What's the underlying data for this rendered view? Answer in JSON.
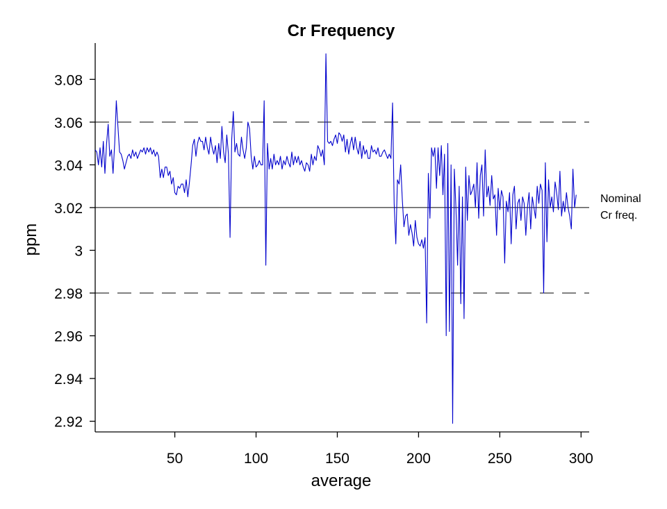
{
  "chart_data": {
    "type": "line",
    "title": "Cr Frequency",
    "xlabel": "average",
    "ylabel": "ppm",
    "xlim": [
      1,
      305
    ],
    "ylim": [
      2.915,
      3.097
    ],
    "xticks": [
      50,
      100,
      150,
      200,
      250,
      300
    ],
    "xtick_labels": [
      "50",
      "100",
      "150",
      "200",
      "250",
      "300"
    ],
    "yticks": [
      2.92,
      2.94,
      2.96,
      2.98,
      3.0,
      3.02,
      3.04,
      3.06,
      3.08
    ],
    "ytick_labels": [
      "2.92",
      "2.94",
      "2.96",
      "2.98",
      "3",
      "3.02",
      "3.04",
      "3.06",
      "3.08"
    ],
    "grid": false,
    "series_color": "#0000cc",
    "reference_lines": [
      {
        "y": 3.06,
        "style": "dashed"
      },
      {
        "y": 3.02,
        "style": "solid",
        "label_lines": [
          "Nominal",
          "Cr freq."
        ]
      },
      {
        "y": 2.98,
        "style": "dashed"
      }
    ],
    "series": [
      {
        "x_start": 1,
        "x_step": 1,
        "values": [
          3.047,
          3.046,
          3.04,
          3.048,
          3.039,
          3.051,
          3.036,
          3.05,
          3.059,
          3.044,
          3.047,
          3.036,
          3.05,
          3.07,
          3.058,
          3.046,
          3.045,
          3.042,
          3.038,
          3.041,
          3.044,
          3.045,
          3.043,
          3.047,
          3.044,
          3.046,
          3.043,
          3.045,
          3.047,
          3.046,
          3.048,
          3.045,
          3.048,
          3.046,
          3.048,
          3.045,
          3.047,
          3.044,
          3.046,
          3.044,
          3.034,
          3.038,
          3.034,
          3.039,
          3.039,
          3.035,
          3.037,
          3.031,
          3.034,
          3.027,
          3.026,
          3.03,
          3.029,
          3.031,
          3.031,
          3.027,
          3.033,
          3.025,
          3.032,
          3.04,
          3.049,
          3.052,
          3.044,
          3.05,
          3.053,
          3.051,
          3.051,
          3.047,
          3.053,
          3.048,
          3.045,
          3.053,
          3.048,
          3.045,
          3.049,
          3.041,
          3.05,
          3.043,
          3.058,
          3.046,
          3.041,
          3.054,
          3.045,
          3.006,
          3.052,
          3.065,
          3.046,
          3.05,
          3.045,
          3.044,
          3.053,
          3.047,
          3.043,
          3.048,
          3.06,
          3.057,
          3.044,
          3.038,
          3.044,
          3.039,
          3.04,
          3.042,
          3.04,
          3.04,
          3.07,
          2.993,
          3.05,
          3.038,
          3.043,
          3.038,
          3.045,
          3.04,
          3.042,
          3.04,
          3.044,
          3.038,
          3.042,
          3.04,
          3.044,
          3.041,
          3.039,
          3.046,
          3.04,
          3.044,
          3.041,
          3.044,
          3.04,
          3.042,
          3.039,
          3.037,
          3.041,
          3.04,
          3.037,
          3.045,
          3.04,
          3.044,
          3.042,
          3.049,
          3.047,
          3.044,
          3.047,
          3.04,
          3.092,
          3.051,
          3.05,
          3.051,
          3.049,
          3.052,
          3.054,
          3.05,
          3.055,
          3.054,
          3.051,
          3.054,
          3.046,
          3.052,
          3.045,
          3.05,
          3.053,
          3.047,
          3.053,
          3.048,
          3.045,
          3.051,
          3.043,
          3.049,
          3.045,
          3.047,
          3.043,
          3.043,
          3.049,
          3.046,
          3.047,
          3.045,
          3.048,
          3.044,
          3.044,
          3.046,
          3.047,
          3.045,
          3.043,
          3.045,
          3.043,
          3.069,
          3.022,
          3.003,
          3.033,
          3.031,
          3.04,
          3.024,
          3.011,
          3.016,
          3.017,
          3.007,
          3.012,
          3.008,
          3.002,
          3.014,
          3.006,
          3.003,
          3.002,
          3.005,
          3.001,
          3.006,
          2.966,
          3.036,
          3.015,
          3.048,
          3.044,
          3.048,
          3.029,
          3.048,
          3.035,
          3.049,
          3.026,
          3.045,
          2.96,
          3.05,
          2.962,
          3.04,
          2.919,
          3.038,
          3.02,
          2.993,
          3.03,
          2.975,
          3.025,
          2.968,
          3.039,
          3.014,
          3.035,
          3.026,
          3.028,
          3.031,
          3.02,
          3.041,
          3.015,
          3.035,
          3.04,
          3.016,
          3.047,
          3.025,
          3.03,
          3.021,
          3.035,
          3.024,
          3.026,
          3.007,
          3.029,
          3.019,
          3.028,
          3.025,
          2.994,
          3.023,
          3.018,
          3.027,
          3.003,
          3.026,
          3.03,
          3.01,
          3.022,
          3.024,
          3.014,
          3.025,
          3.022,
          3.007,
          3.02,
          3.027,
          3.01,
          3.025,
          3.02,
          3.015,
          3.03,
          3.022,
          3.031,
          3.028,
          2.98,
          3.041,
          3.004,
          3.033,
          3.02,
          3.025,
          3.018,
          3.032,
          3.027,
          3.019,
          3.037,
          3.016,
          3.023,
          3.018,
          3.027,
          3.02,
          3.016,
          3.01,
          3.038,
          3.02,
          3.026
        ]
      }
    ]
  }
}
